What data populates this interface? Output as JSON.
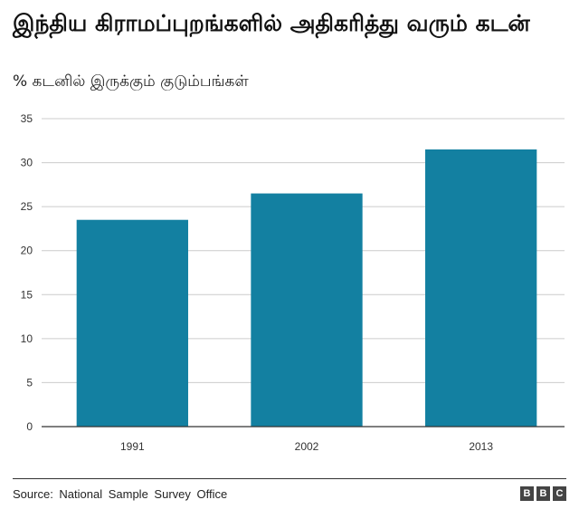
{
  "header": {
    "title": "இந்திய கிராமப்புறங்களில் அதிகரித்து வரும் கடன்",
    "subtitle": "% கடனில் இருக்கும் குடும்பங்கள்"
  },
  "footer": {
    "source": "Source: National Sample Survey Office",
    "logo_letters": [
      "B",
      "B",
      "C"
    ]
  },
  "colors": {
    "bar": "#1380A1",
    "grid": "#cccccc",
    "baseline": "#333333"
  },
  "chart_data": {
    "type": "bar",
    "title": "இந்திய கிராமப்புறங்களில் அதிகரித்து வரும் கடன்",
    "subtitle": "% கடனில் இருக்கும் குடும்பங்கள்",
    "categories": [
      "1991",
      "2002",
      "2013"
    ],
    "values": [
      23.5,
      26.5,
      31.5
    ],
    "ylim": [
      0,
      35
    ],
    "yticks": [
      0,
      5,
      10,
      15,
      20,
      25,
      30,
      35
    ],
    "grid": true,
    "legend": "none"
  }
}
